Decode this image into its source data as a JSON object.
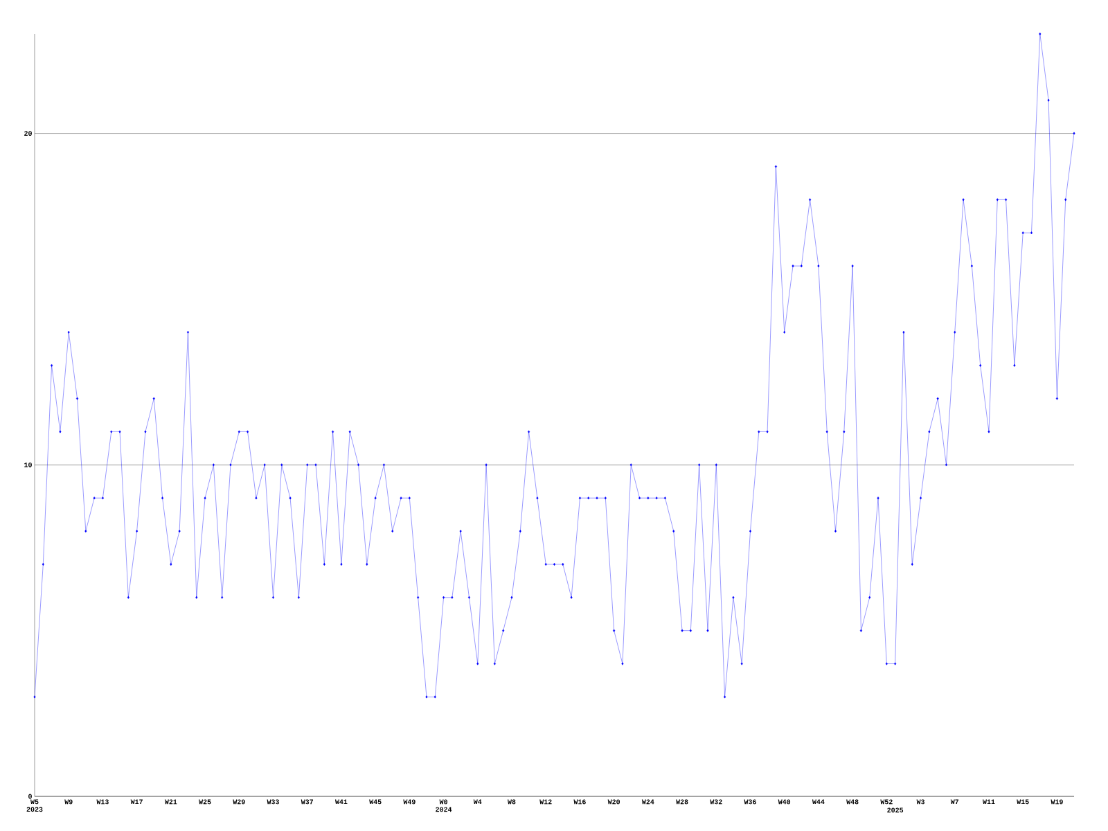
{
  "chart_data": {
    "type": "line",
    "color": "#0000ff",
    "marker": "diamond",
    "line_style": "solid",
    "grid": "y",
    "ylim": [
      0,
      23
    ],
    "yticks": [
      0,
      10,
      20
    ],
    "categories": [
      "W5 2023",
      null,
      null,
      null,
      "W9",
      null,
      null,
      null,
      "W13",
      null,
      null,
      null,
      "W17",
      null,
      null,
      null,
      "W21",
      null,
      null,
      null,
      "W25",
      null,
      null,
      null,
      "W29",
      null,
      null,
      null,
      "W33",
      null,
      null,
      null,
      "W37",
      null,
      null,
      null,
      "W41",
      null,
      null,
      null,
      "W45",
      null,
      null,
      null,
      "W49",
      null,
      null,
      null,
      "W0 2024",
      null,
      null,
      null,
      "W4",
      null,
      null,
      null,
      "W8",
      null,
      null,
      null,
      "W12",
      null,
      null,
      null,
      "W16",
      null,
      null,
      null,
      "W20",
      null,
      null,
      null,
      "W24",
      null,
      null,
      null,
      "W28",
      null,
      null,
      null,
      "W32",
      null,
      null,
      null,
      "W36",
      null,
      null,
      null,
      "W40",
      null,
      null,
      null,
      "W44",
      null,
      null,
      null,
      "W48",
      null,
      null,
      null,
      "W52",
      "2025",
      null,
      null,
      "W3",
      null,
      null,
      null,
      "W7",
      null,
      null,
      null,
      "W11",
      null,
      null,
      null,
      "W15",
      null,
      null,
      null,
      "W19",
      null,
      null
    ],
    "values": [
      3,
      7,
      13,
      11,
      14,
      12,
      8,
      9,
      9,
      11,
      11,
      6,
      8,
      11,
      12,
      9,
      7,
      8,
      14,
      6,
      9,
      10,
      6,
      10,
      11,
      11,
      9,
      10,
      6,
      10,
      9,
      6,
      10,
      10,
      7,
      11,
      7,
      11,
      10,
      7,
      9,
      10,
      8,
      9,
      9,
      6,
      3,
      3,
      6,
      6,
      8,
      6,
      4,
      10,
      4,
      5,
      6,
      8,
      11,
      9,
      7,
      7,
      7,
      6,
      9,
      9,
      9,
      9,
      5,
      4,
      10,
      9,
      9,
      9,
      9,
      8,
      5,
      5,
      10,
      5,
      10,
      3,
      6,
      4,
      8,
      11,
      11,
      19,
      14,
      16,
      16,
      18,
      16,
      11,
      8,
      11,
      16,
      5,
      6,
      9,
      4,
      4,
      14,
      7,
      9,
      11,
      12,
      10,
      14,
      18,
      16,
      13,
      11,
      18,
      18,
      13,
      17,
      17,
      23,
      21,
      12,
      18,
      20
    ]
  }
}
